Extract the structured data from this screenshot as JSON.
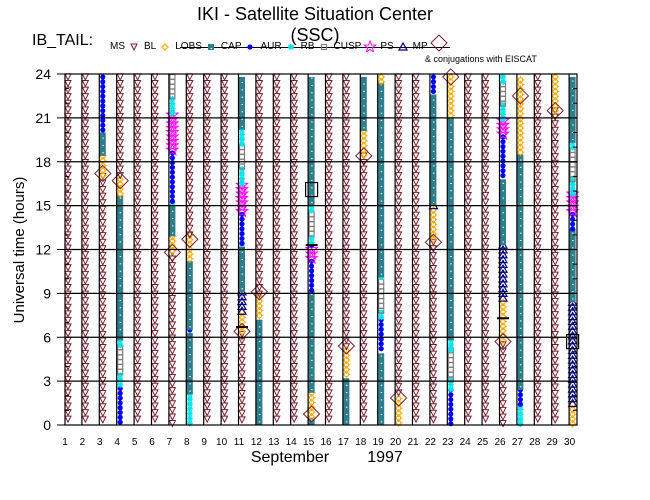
{
  "title": "IKI - Satellite Situation Center (SSC)",
  "satellite_label": "IB_TAIL:",
  "conjugation_note": "& conjugations with EISCAT",
  "colors": {
    "MS": "#7a1f2e",
    "BL": "#ffaa00",
    "LOBS": "#2e7d8a",
    "CAP": "#0000ff",
    "AUR": "#00e5ee",
    "RB": "#808080",
    "CUSP": "#ff00ff",
    "PS": "#000080",
    "MP": "#7a1f2e",
    "marker": "#000000"
  },
  "legend": [
    {
      "label": "MS",
      "symbol": "triangle-down"
    },
    {
      "label": "BL",
      "symbol": "sun"
    },
    {
      "label": "LOBS",
      "symbol": "square-filled"
    },
    {
      "label": "CAP",
      "symbol": "dot"
    },
    {
      "label": "AUR",
      "symbol": "asterisk"
    },
    {
      "label": "RB",
      "symbol": "square-open"
    },
    {
      "label": "CUSP",
      "symbol": "star"
    },
    {
      "label": "PS",
      "symbol": "triangle-up"
    },
    {
      "label": "MP",
      "symbol": "diamond"
    }
  ],
  "chart_data": {
    "type": "scatter",
    "xlabel": "September",
    "xlabel2": "1997",
    "ylabel": "Universal time (hours)",
    "xlim": [
      1,
      30
    ],
    "ylim": [
      0,
      24
    ],
    "x_ticks": [
      1,
      2,
      3,
      4,
      5,
      6,
      7,
      8,
      9,
      10,
      11,
      12,
      13,
      14,
      15,
      16,
      17,
      18,
      19,
      20,
      21,
      22,
      23,
      24,
      25,
      26,
      27,
      28,
      29,
      30
    ],
    "y_ticks": [
      0,
      3,
      6,
      9,
      12,
      15,
      18,
      21,
      24
    ],
    "grid": true,
    "days": [
      {
        "day": 1,
        "segments": [
          [
            "MS",
            0,
            23.8
          ]
        ]
      },
      {
        "day": 2,
        "segments": [
          [
            "MS",
            0,
            23.8
          ]
        ]
      },
      {
        "day": 3,
        "segments": [
          [
            "MS",
            0,
            17
          ],
          [
            "BL",
            17,
            18.4
          ],
          [
            "LOBS",
            18.4,
            20
          ],
          [
            "CAP",
            20,
            23.8
          ]
        ],
        "conjugations": [
          17.2
        ]
      },
      {
        "day": 4,
        "segments": [
          [
            "CAP",
            0,
            2.5
          ],
          [
            "AUR",
            2.5,
            3.4
          ],
          [
            "RB",
            3.4,
            5.3
          ],
          [
            "AUR",
            5.3,
            5.8
          ],
          [
            "LOBS",
            5.8,
            15.7
          ],
          [
            "BL",
            15.8,
            16.8
          ],
          [
            "MS",
            16.8,
            23.8
          ]
        ],
        "conjugations": [
          16.7
        ]
      },
      {
        "day": 5,
        "segments": [
          [
            "MS",
            0,
            23.8
          ]
        ]
      },
      {
        "day": 6,
        "segments": [
          [
            "MS",
            0,
            23.8
          ]
        ]
      },
      {
        "day": 7,
        "segments": [
          [
            "MS",
            0,
            11.8
          ],
          [
            "BL",
            11.8,
            12.9
          ],
          [
            "LOBS",
            12.9,
            15
          ],
          [
            "AUR",
            15,
            15.2
          ],
          [
            "CAP",
            15.2,
            18.6
          ],
          [
            "CUSP",
            18.6,
            21.2
          ],
          [
            "AUR",
            21.2,
            22.3
          ],
          [
            "RB",
            22.3,
            23.8
          ]
        ],
        "conjugations": [
          11.8
        ]
      },
      {
        "day": 8,
        "segments": [
          [
            "AUR",
            0,
            2.1
          ],
          [
            "LOBS",
            2.1,
            6.3
          ],
          [
            "CAP",
            6.3,
            6.5
          ],
          [
            "LOBS",
            6.5,
            11.2
          ],
          [
            "BL",
            11.2,
            13
          ],
          [
            "MS",
            13,
            23.8
          ]
        ],
        "conjugations": [
          12.7
        ]
      },
      {
        "day": 9,
        "segments": [
          [
            "MS",
            0,
            23.8
          ]
        ]
      },
      {
        "day": 10,
        "segments": [
          [
            "MS",
            0,
            23.8
          ]
        ]
      },
      {
        "day": 11,
        "segments": [
          [
            "MS",
            0,
            6.2
          ],
          [
            "BL",
            6.2,
            7.7
          ],
          [
            "PS",
            7.7,
            9.1
          ],
          [
            "LOBS",
            9.1,
            12.2
          ],
          [
            "AUR",
            12.2,
            12.4
          ],
          [
            "CAP",
            12.4,
            14.4
          ],
          [
            "CUSP",
            14.4,
            16.4
          ],
          [
            "AUR",
            16.4,
            17.5
          ],
          [
            "RB",
            17.5,
            19
          ],
          [
            "AUR",
            19,
            20.2
          ],
          [
            "LOBS",
            20.2,
            23.8
          ]
        ],
        "conjugations": [
          6.4
        ],
        "markers": [
          {
            "type": "bar",
            "time": 6.7
          }
        ]
      },
      {
        "day": 12,
        "segments": [
          [
            "LOBS",
            0,
            7.2
          ],
          [
            "BL",
            7.2,
            8.8
          ],
          [
            "MS",
            8.8,
            23.8
          ]
        ],
        "conjugations": [
          9.1
        ]
      },
      {
        "day": 13,
        "segments": [
          [
            "MS",
            0,
            23.8
          ]
        ]
      },
      {
        "day": 14,
        "segments": [
          [
            "MS",
            0,
            23.8
          ]
        ]
      },
      {
        "day": 15,
        "segments": [
          [
            "LOBS",
            0,
            0.5
          ],
          [
            "BL",
            0.5,
            2.2
          ],
          [
            "LOBS",
            2.2,
            9.2
          ],
          [
            "CAP",
            9.2,
            11.2
          ],
          [
            "CUSP",
            11.2,
            12
          ],
          [
            "CAP",
            12,
            12.3
          ],
          [
            "AUR",
            12.3,
            12.8
          ],
          [
            "RB",
            12.8,
            14.4
          ],
          [
            "AUR",
            14.4,
            15
          ],
          [
            "LOBS",
            15,
            23.8
          ]
        ],
        "conjugations": [
          0.75
        ],
        "markers": [
          {
            "type": "box",
            "time": 16.1
          },
          {
            "type": "bar",
            "time": 12.3
          }
        ]
      },
      {
        "day": 16,
        "segments": [
          [
            "MS",
            0,
            23.8
          ]
        ]
      },
      {
        "day": 17,
        "segments": [
          [
            "LOBS",
            0,
            3.2
          ],
          [
            "BL",
            3.2,
            5.1
          ],
          [
            "MS",
            5.1,
            23.8
          ]
        ],
        "conjugations": [
          5.4
        ]
      },
      {
        "day": 18,
        "segments": [
          [
            "MS",
            0,
            18.4
          ],
          [
            "BL",
            18.4,
            20.1
          ],
          [
            "LOBS",
            20.1,
            23.8
          ]
        ],
        "conjugations": [
          18.4
        ]
      },
      {
        "day": 19,
        "segments": [
          [
            "LOBS",
            0,
            4.9
          ],
          [
            "CAP",
            4.9,
            7.2
          ],
          [
            "AUR",
            7.2,
            7.7
          ],
          [
            "RB",
            7.7,
            9.8
          ],
          [
            "AUR",
            9.8,
            10.1
          ],
          [
            "LOBS",
            10.1,
            23.4
          ],
          [
            "BL",
            23.4,
            23.8
          ]
        ]
      },
      {
        "day": 20,
        "segments": [
          [
            "BL",
            0,
            1.8
          ],
          [
            "MS",
            1.8,
            23.8
          ]
        ],
        "conjugations": [
          1.85
        ]
      },
      {
        "day": 21,
        "segments": [
          [
            "MS",
            0,
            23.8
          ]
        ]
      },
      {
        "day": 22,
        "segments": [
          [
            "MS",
            0,
            12.5
          ],
          [
            "BL",
            12.5,
            14.7
          ],
          [
            "PS",
            14.7,
            15
          ],
          [
            "LOBS",
            15,
            22.6
          ],
          [
            "CAP",
            22.6,
            23.8
          ]
        ],
        "conjugations": [
          12.5
        ]
      },
      {
        "day": 23,
        "segments": [
          [
            "CAP",
            0,
            2.4
          ],
          [
            "AUR",
            2.4,
            3.1
          ],
          [
            "RB",
            3.1,
            5.1
          ],
          [
            "AUR",
            5.1,
            5.8
          ],
          [
            "LOBS",
            5.8,
            21
          ],
          [
            "BL",
            21,
            23.8
          ]
        ],
        "conjugations": [
          23.8
        ]
      },
      {
        "day": 24,
        "segments": [
          [
            "MS",
            0,
            23.8
          ]
        ]
      },
      {
        "day": 25,
        "segments": [
          [
            "MS",
            0,
            23.8
          ]
        ]
      },
      {
        "day": 26,
        "segments": [
          [
            "MS",
            0,
            5.5
          ],
          [
            "BL",
            5.5,
            8.4
          ],
          [
            "PS",
            8.4,
            12.3
          ],
          [
            "LOBS",
            12.3,
            16.8
          ],
          [
            "CAP",
            16.8,
            19.7
          ],
          [
            "CUSP",
            19.7,
            20.8
          ],
          [
            "AUR",
            20.8,
            21.9
          ],
          [
            "RB",
            21.9,
            23.3
          ],
          [
            "AUR",
            23.3,
            23.8
          ]
        ],
        "conjugations": [
          5.7
        ],
        "markers": [
          {
            "type": "bar",
            "time": 7.3
          }
        ]
      },
      {
        "day": 27,
        "segments": [
          [
            "AUR",
            0,
            1.4
          ],
          [
            "CAP",
            1.4,
            2.4
          ],
          [
            "LOBS",
            2.4,
            18.5
          ],
          [
            "BL",
            18.5,
            23.6
          ]
        ],
        "conjugations": [
          22.5
        ]
      },
      {
        "day": 28,
        "segments": [
          [
            "MS",
            0,
            23.8
          ]
        ]
      },
      {
        "day": 29,
        "segments": [
          [
            "MS",
            0,
            21.5
          ],
          [
            "BL",
            21.5,
            23.8
          ]
        ],
        "conjugations": [
          21.5
        ]
      },
      {
        "day": 30,
        "segments": [
          [
            "BL",
            0,
            1.4
          ],
          [
            "PS",
            1.4,
            8.4
          ],
          [
            "LOBS",
            8.4,
            13.4
          ],
          [
            "CAP",
            13.4,
            14.4
          ],
          [
            "CUSP",
            14.4,
            15.8
          ],
          [
            "AUR",
            15.8,
            16.8
          ],
          [
            "RB",
            16.8,
            18.8
          ],
          [
            "AUR",
            18.8,
            19.3
          ],
          [
            "LOBS",
            19.3,
            23.8
          ]
        ],
        "markers": [
          {
            "type": "box",
            "time": 5.7
          }
        ]
      }
    ]
  }
}
